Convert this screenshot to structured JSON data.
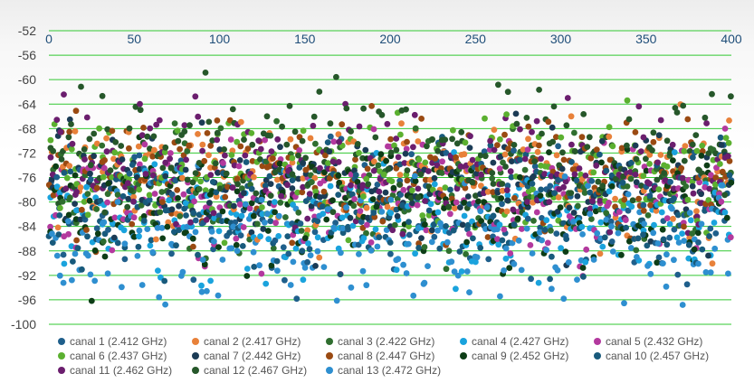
{
  "chart_data": {
    "type": "scatter",
    "title": "",
    "xlabel": "",
    "ylabel": "",
    "xlim": [
      0,
      400
    ],
    "ylim": [
      -100,
      -52
    ],
    "x_ticks": [
      "0",
      "50",
      "100",
      "150",
      "200",
      "250",
      "300",
      "350",
      "400"
    ],
    "y_ticks": [
      "-52",
      "-56",
      "-60",
      "-64",
      "-68",
      "-72",
      "-76",
      "-80",
      "-84",
      "-88",
      "-92",
      "-96",
      "-100"
    ],
    "grid": "horizontal",
    "gridline_color": "#32c832",
    "x_axis_position": "top",
    "legend_position": "bottom",
    "points_per_series": 400,
    "value_range": [
      -97,
      -55
    ],
    "series": [
      {
        "name": "canal 1 (2.412 GHz)",
        "color": "#1f5f8b",
        "mean": -80
      },
      {
        "name": "canal 2 (2.417 GHz)",
        "color": "#e8813a",
        "mean": -76
      },
      {
        "name": "canal 3 (2.422 GHz)",
        "color": "#2f6e2f",
        "mean": -78
      },
      {
        "name": "canal 4 (2.427 GHz)",
        "color": "#1aa3dd",
        "mean": -83
      },
      {
        "name": "canal 5 (2.432 GHz)",
        "color": "#b3399e",
        "mean": -79
      },
      {
        "name": "canal 6 (2.437 GHz)",
        "color": "#5bb030",
        "mean": -75
      },
      {
        "name": "canal 7 (2.442 GHz)",
        "color": "#1b3b55",
        "mean": -77
      },
      {
        "name": "canal 8 (2.447 GHz)",
        "color": "#9a4a12",
        "mean": -76
      },
      {
        "name": "canal 9 (2.452 GHz)",
        "color": "#0d3d16",
        "mean": -81
      },
      {
        "name": "canal 10 (2.457 GHz)",
        "color": "#185a7c",
        "mean": -82
      },
      {
        "name": "canal 11 (2.462 GHz)",
        "color": "#6b1e6e",
        "mean": -74
      },
      {
        "name": "canal 12 (2.467 GHz)",
        "color": "#26572a",
        "mean": -72
      },
      {
        "name": "canal 13 (2.472 GHz)",
        "color": "#2e8fd0",
        "mean": -86
      }
    ]
  }
}
